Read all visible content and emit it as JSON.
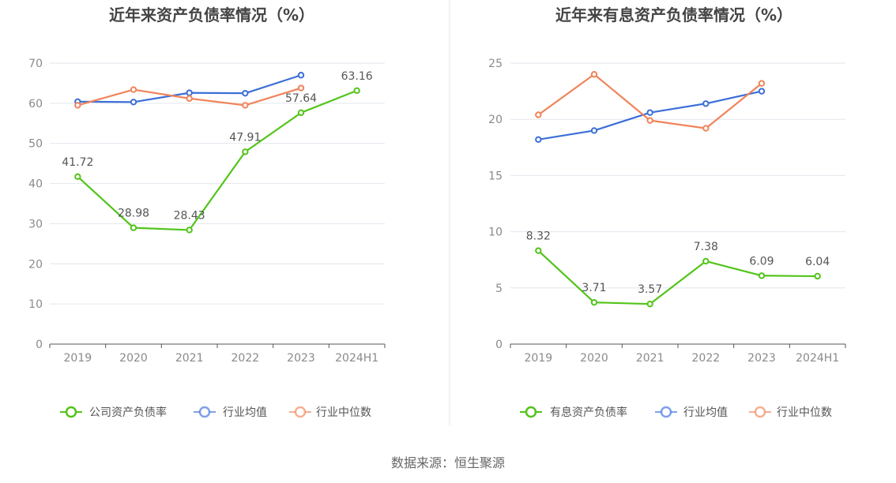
{
  "source_text": "数据来源：恒生聚源",
  "chart_data": [
    {
      "type": "line",
      "title": "近年来资产负债率情况（%）",
      "categories": [
        "2019",
        "2020",
        "2021",
        "2022",
        "2023",
        "2024H1"
      ],
      "ylim": [
        0,
        70
      ],
      "yticks": [
        "0",
        "10",
        "20",
        "30",
        "40",
        "50",
        "60",
        "70"
      ],
      "grid": true,
      "legend_position": "bottom",
      "series": [
        {
          "name": "公司资产负债率",
          "color": "#52c41a",
          "values": [
            41.72,
            28.98,
            28.43,
            47.91,
            57.64,
            63.16
          ],
          "labels": [
            "41.72",
            "28.98",
            "28.43",
            "47.91",
            "57.64",
            "63.16"
          ]
        },
        {
          "name": "行业均值",
          "color": "#3b6fd8",
          "values": [
            60.4,
            60.3,
            62.6,
            62.5,
            67.0,
            null
          ]
        },
        {
          "name": "行业中位数",
          "color": "#f0845a",
          "values": [
            59.5,
            63.4,
            61.2,
            59.5,
            63.8,
            null
          ]
        }
      ]
    },
    {
      "type": "line",
      "title": "近年来有息资产负债率情况（%）",
      "categories": [
        "2019",
        "2020",
        "2021",
        "2022",
        "2023",
        "2024H1"
      ],
      "ylim": [
        0,
        25
      ],
      "yticks": [
        "0",
        "5",
        "10",
        "15",
        "20",
        "25"
      ],
      "grid": true,
      "legend_position": "bottom",
      "series": [
        {
          "name": "有息资产负债率",
          "color": "#52c41a",
          "values": [
            8.32,
            3.71,
            3.57,
            7.38,
            6.09,
            6.04
          ],
          "labels": [
            "8.32",
            "3.71",
            "3.57",
            "7.38",
            "6.09",
            "6.04"
          ]
        },
        {
          "name": "行业均值",
          "color": "#3b6fd8",
          "values": [
            18.2,
            19.0,
            20.6,
            21.4,
            22.5,
            null
          ]
        },
        {
          "name": "行业中位数",
          "color": "#f0845a",
          "values": [
            20.4,
            24.0,
            19.9,
            19.2,
            23.2,
            null
          ]
        }
      ]
    }
  ]
}
